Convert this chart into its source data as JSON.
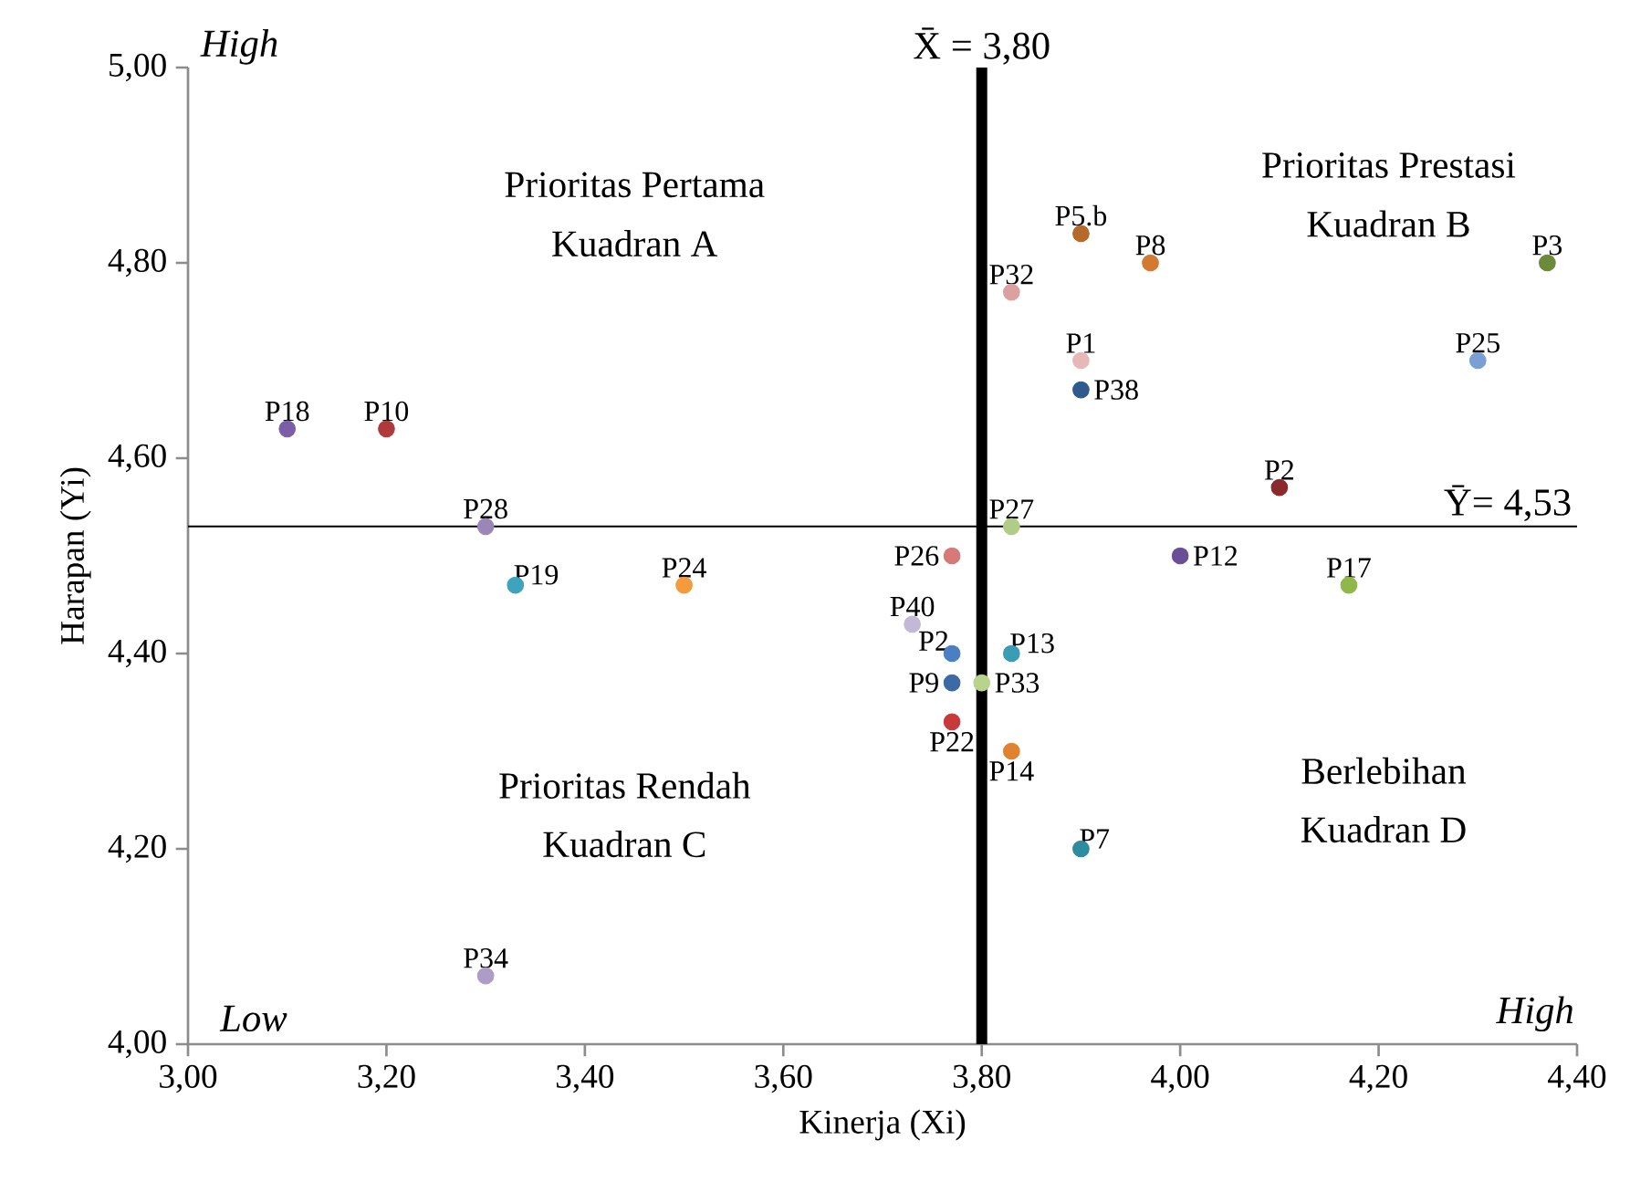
{
  "chart_data": {
    "type": "scatter",
    "xlabel": "Kinerja (Xi)",
    "ylabel": "Harapan (Yi)",
    "xlim": [
      3.0,
      4.4
    ],
    "ylim": [
      4.0,
      5.0
    ],
    "xticks": [
      {
        "value": 3.0,
        "label": "3,00"
      },
      {
        "value": 3.2,
        "label": "3,20"
      },
      {
        "value": 3.4,
        "label": "3,40"
      },
      {
        "value": 3.6,
        "label": "3,60"
      },
      {
        "value": 3.8,
        "label": "3,80"
      },
      {
        "value": 4.0,
        "label": "4,00"
      },
      {
        "value": 4.2,
        "label": "4,20"
      },
      {
        "value": 4.4,
        "label": "4,40"
      }
    ],
    "yticks": [
      {
        "value": 4.0,
        "label": "4,00"
      },
      {
        "value": 4.2,
        "label": "4,20"
      },
      {
        "value": 4.4,
        "label": "4,40"
      },
      {
        "value": 4.6,
        "label": "4,60"
      },
      {
        "value": 4.8,
        "label": "4,80"
      },
      {
        "value": 5.0,
        "label": "5,00"
      }
    ],
    "marker": "circle",
    "grid": false,
    "legend": false,
    "ref_lines": [
      {
        "axis": "x",
        "value": 3.8,
        "label": "X̄ = 3,80",
        "color": "#000000"
      },
      {
        "axis": "y",
        "value": 4.53,
        "label": "Ȳ= 4,53",
        "color": "#000000"
      }
    ],
    "annotations": [
      "Prioritas Pertama",
      "Kuadran A",
      "Prioritas Prestasi",
      "Kuadran B",
      "Prioritas Rendah",
      "Kuadran C",
      "Berlebihan",
      "Kuadran D",
      "High",
      "Low",
      "High"
    ],
    "series": [
      {
        "name": "P18",
        "color": "#7b5ea7",
        "x": [
          3.1
        ],
        "values": [
          4.63
        ]
      },
      {
        "name": "P10",
        "color": "#b03a3a",
        "x": [
          3.2
        ],
        "values": [
          4.63
        ]
      },
      {
        "name": "P28",
        "color": "#9b86b8",
        "x": [
          3.3
        ],
        "values": [
          4.53
        ]
      },
      {
        "name": "P19",
        "color": "#3ea3bd",
        "x": [
          3.33
        ],
        "values": [
          4.47
        ]
      },
      {
        "name": "P24",
        "color": "#f59a3d",
        "x": [
          3.5
        ],
        "values": [
          4.47
        ]
      },
      {
        "name": "P40",
        "color": "#c4b8d8",
        "x": [
          3.73
        ],
        "values": [
          4.43
        ]
      },
      {
        "name": "P2",
        "color": "#4a7fc4",
        "x": [
          3.77
        ],
        "values": [
          4.4
        ]
      },
      {
        "name": "P9",
        "color": "#3b6aa5",
        "x": [
          3.77
        ],
        "values": [
          4.37
        ]
      },
      {
        "name": "P22",
        "color": "#c83a3a",
        "x": [
          3.77
        ],
        "values": [
          4.33
        ]
      },
      {
        "name": "P26",
        "color": "#d57a78",
        "x": [
          3.77
        ],
        "values": [
          4.5
        ]
      },
      {
        "name": "P34",
        "color": "#ad9cc6",
        "x": [
          3.3
        ],
        "values": [
          4.07
        ]
      },
      {
        "name": "P33",
        "color": "#b8d48c",
        "x": [
          3.8
        ],
        "values": [
          4.37
        ]
      },
      {
        "name": "P13",
        "color": "#3a9db5",
        "x": [
          3.83
        ],
        "values": [
          4.4
        ]
      },
      {
        "name": "P14",
        "color": "#e0822f",
        "x": [
          3.83
        ],
        "values": [
          4.3
        ]
      },
      {
        "name": "P7",
        "color": "#2e8ba0",
        "x": [
          3.9
        ],
        "values": [
          4.2
        ]
      },
      {
        "name": "P12",
        "color": "#6a4f96",
        "x": [
          4.0
        ],
        "values": [
          4.5
        ]
      },
      {
        "name": "P17",
        "color": "#8fb84a",
        "x": [
          4.17
        ],
        "values": [
          4.47
        ]
      },
      {
        "name": "P5.b",
        "color": "#b5692a",
        "x": [
          3.9
        ],
        "values": [
          4.83
        ]
      },
      {
        "name": "P8",
        "color": "#d27a32",
        "x": [
          3.97
        ],
        "values": [
          4.8
        ]
      },
      {
        "name": "P32",
        "color": "#dba0a0",
        "x": [
          3.83
        ],
        "values": [
          4.77
        ]
      },
      {
        "name": "P1",
        "color": "#e6b8b8",
        "x": [
          3.9
        ],
        "values": [
          4.7
        ]
      },
      {
        "name": "P38",
        "color": "#2f5a8e",
        "x": [
          3.9
        ],
        "values": [
          4.67
        ]
      },
      {
        "name": "P3",
        "color": "#6b8a3a",
        "x": [
          4.37
        ],
        "values": [
          4.8
        ]
      },
      {
        "name": "P25",
        "color": "#7a9fd4",
        "x": [
          4.3
        ],
        "values": [
          4.7
        ]
      },
      {
        "name": "P2",
        "color": "#8b2a2a",
        "x": [
          4.1
        ],
        "values": [
          4.57
        ]
      },
      {
        "name": "P27",
        "color": "#b0cc86",
        "x": [
          3.83
        ],
        "values": [
          4.53
        ]
      }
    ]
  }
}
